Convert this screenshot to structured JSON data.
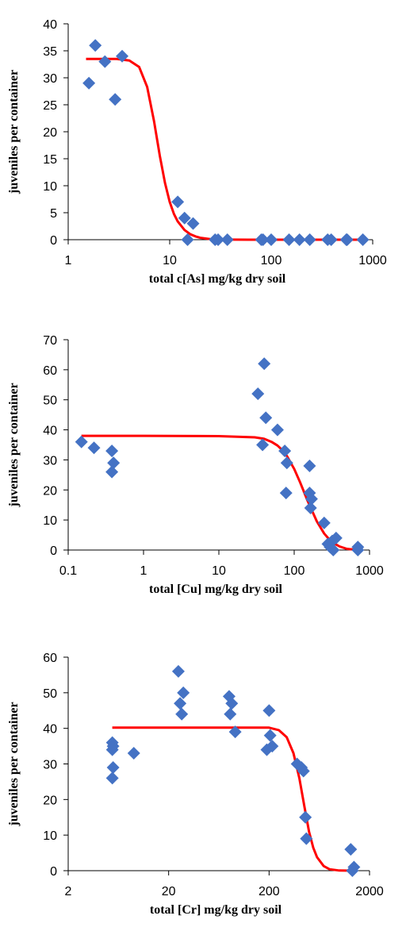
{
  "chart_data": [
    {
      "type": "scatter",
      "xscale": "log",
      "xlim": [
        1,
        1000
      ],
      "ylim": [
        0,
        40
      ],
      "xticks": [
        1,
        10,
        100,
        1000
      ],
      "xtick_labels": [
        "1",
        "10",
        "100",
        "1000"
      ],
      "yticks": [
        0,
        5,
        10,
        15,
        20,
        25,
        30,
        35,
        40
      ],
      "ytick_labels": [
        "0",
        "5",
        "10",
        "15",
        "20",
        "25",
        "30",
        "35",
        "40"
      ],
      "xlabel": "total c[As] mg/kg dry soil",
      "ylabel": "juveniles per container",
      "grid": false,
      "legend": "none",
      "marker_color": "#4472C4",
      "line_color": "#FF0000",
      "points": {
        "x": [
          1.6,
          1.85,
          2.3,
          2.9,
          3.4,
          12,
          14,
          15,
          17,
          28,
          30,
          37,
          80,
          83,
          100,
          150,
          190,
          240,
          360,
          390,
          550,
          560,
          800
        ],
        "y": [
          29,
          36,
          33,
          26,
          34,
          7,
          4,
          0,
          3,
          0,
          0,
          0,
          0,
          0,
          0,
          0,
          0,
          0,
          0,
          0,
          0,
          0,
          0
        ]
      },
      "fit_line": {
        "x": [
          1.5,
          2,
          3,
          4,
          5,
          6,
          7,
          8,
          9,
          10,
          11,
          12,
          14,
          16,
          18,
          20,
          25,
          30,
          40,
          60,
          100,
          200,
          500,
          800
        ],
        "y": [
          33.5,
          33.5,
          33.5,
          33.2,
          32,
          28.3,
          22,
          15.5,
          10.5,
          7,
          4.8,
          3.4,
          1.8,
          1.0,
          0.6,
          0.35,
          0.12,
          0.05,
          0.02,
          0,
          0,
          0,
          0,
          0
        ]
      }
    },
    {
      "type": "scatter",
      "xscale": "log",
      "xlim": [
        0.1,
        1000
      ],
      "ylim": [
        0,
        70
      ],
      "xticks": [
        0.1,
        1,
        10,
        100,
        1000
      ],
      "xtick_labels": [
        "0.1",
        "1",
        "10",
        "100",
        "1000"
      ],
      "yticks": [
        0,
        10,
        20,
        30,
        40,
        50,
        60,
        70
      ],
      "ytick_labels": [
        "0",
        "10",
        "20",
        "30",
        "40",
        "50",
        "60",
        "70"
      ],
      "xlabel": "total [Cu] mg/kg dry soil",
      "ylabel": "juveniles per container",
      "grid": false,
      "legend": "none",
      "marker_color": "#4472C4",
      "line_color": "#FF0000",
      "points": {
        "x": [
          0.15,
          0.22,
          0.38,
          0.4,
          0.38,
          33,
          38,
          40,
          42,
          60,
          75,
          78,
          80,
          160,
          160,
          170,
          165,
          250,
          280,
          300,
          320,
          330,
          360,
          700,
          700
        ],
        "y": [
          36,
          34,
          33,
          29,
          26,
          52,
          35,
          62,
          44,
          40,
          33,
          19,
          29,
          28,
          19,
          17,
          14,
          9,
          2,
          1,
          3,
          0,
          4,
          1,
          0
        ]
      },
      "fit_line": {
        "x": [
          0.15,
          1,
          10,
          30,
          40,
          50,
          60,
          70,
          80,
          100,
          120,
          150,
          200,
          250,
          300,
          350,
          400,
          500,
          700
        ],
        "y": [
          38,
          38,
          37.9,
          37.5,
          37,
          36,
          34.8,
          33.2,
          31.3,
          27,
          22.5,
          16.5,
          9.5,
          5.5,
          3.2,
          2.0,
          1.2,
          0.4,
          0
        ]
      }
    },
    {
      "type": "scatter",
      "xscale": "log",
      "xlim": [
        2,
        2000
      ],
      "ylim": [
        0,
        60
      ],
      "xticks": [
        2,
        20,
        200,
        2000
      ],
      "xtick_labels": [
        "2",
        "20",
        "200",
        "2000"
      ],
      "yticks": [
        0,
        10,
        20,
        30,
        40,
        50,
        60
      ],
      "ytick_labels": [
        "0",
        "10",
        "20",
        "30",
        "40",
        "50",
        "60"
      ],
      "xlabel": "total [Cr] mg/kg dry soil",
      "ylabel": "juveniles per container",
      "grid": false,
      "legend": "none",
      "marker_color": "#4472C4",
      "line_color": "#FF0000",
      "points": {
        "x": [
          5.5,
          5.6,
          5.5,
          5.5,
          5.6,
          9,
          25,
          26,
          27,
          28,
          80,
          82,
          85,
          92,
          190,
          200,
          205,
          215,
          380,
          420,
          440,
          460,
          470,
          1300,
          1350,
          1400
        ],
        "y": [
          26,
          29,
          34,
          36,
          35,
          33,
          56,
          47,
          44,
          50,
          49,
          44,
          47,
          39,
          34,
          45,
          38,
          35,
          30,
          29,
          28,
          15,
          9,
          6,
          0,
          1
        ]
      },
      "fit_line": {
        "x": [
          5.5,
          10,
          50,
          200,
          250,
          300,
          350,
          400,
          450,
          500,
          550,
          600,
          700,
          800,
          1000,
          1400
        ],
        "y": [
          40.2,
          40.2,
          40.2,
          40.2,
          39.5,
          37.5,
          33,
          26,
          18,
          11,
          6.5,
          3.8,
          1.3,
          0.4,
          0.05,
          0
        ]
      }
    }
  ]
}
